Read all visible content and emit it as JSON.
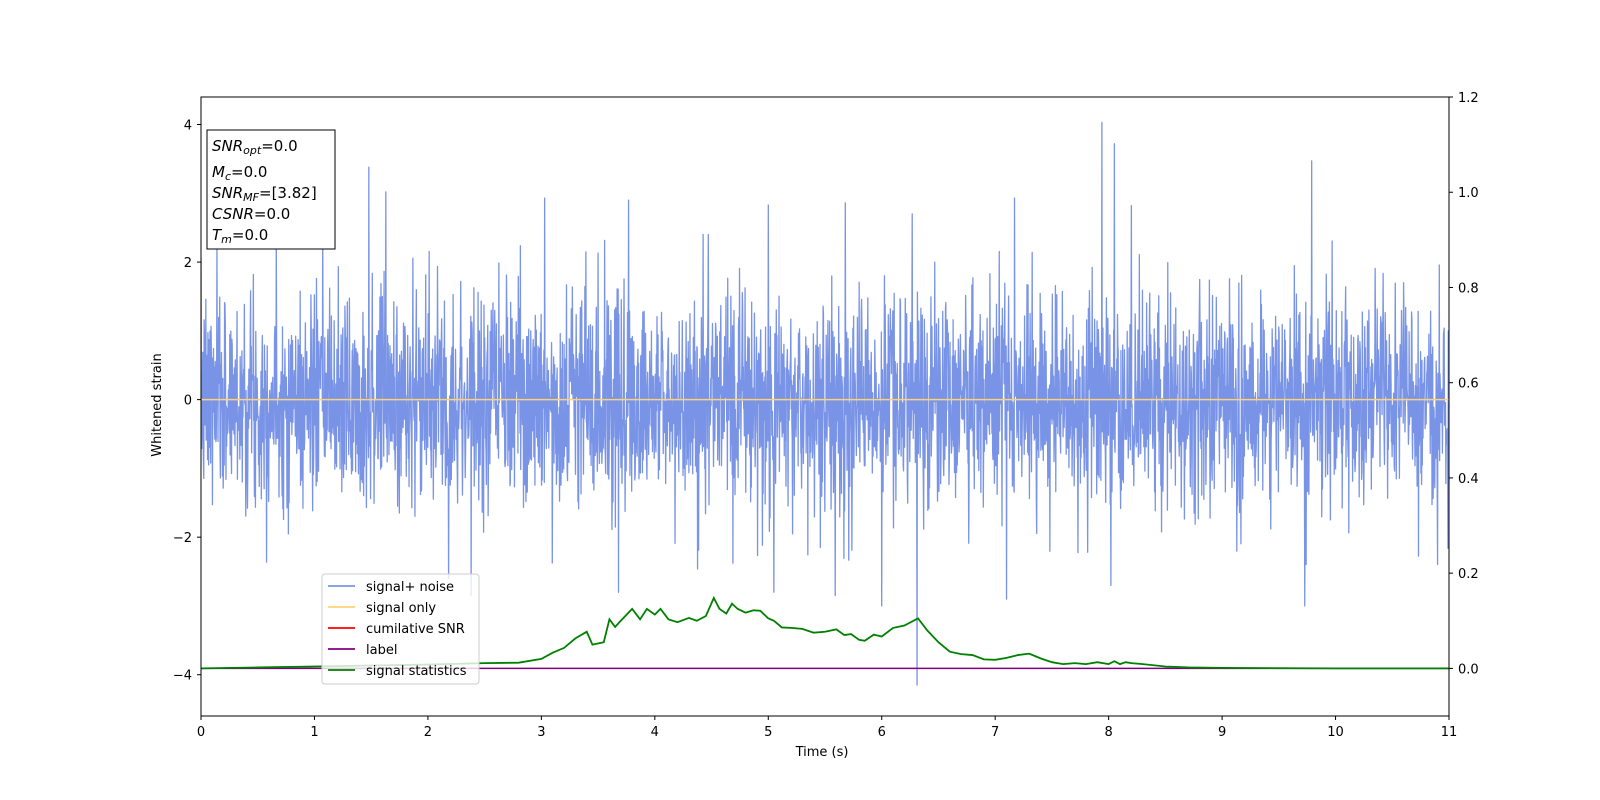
{
  "chart_data": {
    "type": "line",
    "xlabel": "Time (s)",
    "ylabel": "Whitened strain",
    "xlim": [
      0,
      11
    ],
    "ylim": [
      -4.6,
      4.4
    ],
    "y2lim": [
      -0.1,
      1.2
    ],
    "xticks": [
      "0",
      "1",
      "2",
      "3",
      "4",
      "5",
      "6",
      "7",
      "8",
      "9",
      "10",
      "11"
    ],
    "yticks": [
      "−4",
      "−2",
      "0",
      "2",
      "4"
    ],
    "y2ticks": [
      "0.0",
      "0.2",
      "0.4",
      "0.6",
      "0.8",
      "1.0",
      "1.2"
    ],
    "grid": false,
    "legend_position": "lower-left",
    "legend": [
      {
        "name": "signal+ noise",
        "color": "#7994e6"
      },
      {
        "name": "signal only",
        "color": "#ffd27a"
      },
      {
        "name": "cumilative SNR",
        "color": "#ff0000"
      },
      {
        "name": "label",
        "color": "#800080"
      },
      {
        "name": "signal statistics",
        "color": "#008000"
      }
    ],
    "annotation": {
      "lines": [
        {
          "sym": "SNR",
          "sub": "opt",
          "value": "=0.0"
        },
        {
          "sym": "M",
          "sub": "c",
          "value": "=0.0"
        },
        {
          "sym": "SNR",
          "sub": "MF",
          "value": "=[3.82]"
        },
        {
          "sym": "CSNR",
          "sub": "",
          "value": "=0.0"
        },
        {
          "sym": "T",
          "sub": "m",
          "value": "=0.0"
        }
      ]
    },
    "series": [
      {
        "name": "signal+ noise",
        "axis": "left",
        "color": "#7994e6",
        "noise": {
          "sigma": 0.75,
          "clip": [
            -2.6,
            2.4
          ],
          "seed": 7
        },
        "spikes": [
          [
            1.48,
            3.38
          ],
          [
            1.63,
            3.02
          ],
          [
            2.38,
            2.85
          ],
          [
            2.38,
            -2.85
          ],
          [
            3.03,
            2.93
          ],
          [
            3.77,
            2.9
          ],
          [
            5.0,
            2.83
          ],
          [
            5.68,
            2.86
          ],
          [
            6.31,
            -4.15
          ],
          [
            6.27,
            2.7
          ],
          [
            7.17,
            2.93
          ],
          [
            7.94,
            4.03
          ],
          [
            8.05,
            3.72
          ],
          [
            8.2,
            2.82
          ],
          [
            9.79,
            3.47
          ],
          [
            9.73,
            -3.0
          ],
          [
            5.05,
            -2.8
          ],
          [
            6.0,
            -3.0
          ],
          [
            7.1,
            -2.9
          ],
          [
            8.02,
            -2.7
          ],
          [
            3.68,
            -2.8
          ],
          [
            5.59,
            -2.85
          ]
        ]
      },
      {
        "name": "signal only",
        "axis": "left",
        "color": "#ffd27a",
        "x": [
          0,
          11
        ],
        "y": [
          0,
          0
        ]
      },
      {
        "name": "label",
        "axis": "right",
        "color": "#800080",
        "x": [
          0,
          11
        ],
        "y": [
          0,
          0
        ]
      },
      {
        "name": "signal statistics",
        "axis": "right",
        "color": "#008000",
        "x": [
          0,
          0.5,
          1.0,
          1.5,
          2.0,
          2.5,
          2.8,
          3.0,
          3.1,
          3.2,
          3.3,
          3.4,
          3.45,
          3.55,
          3.6,
          3.65,
          3.7,
          3.8,
          3.87,
          3.93,
          4.0,
          4.05,
          4.12,
          4.2,
          4.3,
          4.37,
          4.45,
          4.52,
          4.57,
          4.63,
          4.68,
          4.73,
          4.8,
          4.87,
          4.93,
          5.0,
          5.05,
          5.12,
          5.2,
          5.3,
          5.4,
          5.5,
          5.6,
          5.67,
          5.73,
          5.8,
          5.85,
          5.93,
          6.0,
          6.1,
          6.2,
          6.32,
          6.4,
          6.5,
          6.6,
          6.7,
          6.8,
          6.9,
          7.0,
          7.1,
          7.2,
          7.3,
          7.4,
          7.5,
          7.6,
          7.7,
          7.8,
          7.9,
          8.0,
          8.05,
          8.1,
          8.15,
          8.2,
          8.3,
          8.5,
          8.7,
          9.0,
          10.0,
          11.0
        ],
        "y": [
          0.0,
          0.002,
          0.004,
          0.006,
          0.008,
          0.011,
          0.012,
          0.02,
          0.033,
          0.043,
          0.063,
          0.077,
          0.05,
          0.055,
          0.103,
          0.087,
          0.1,
          0.125,
          0.103,
          0.125,
          0.113,
          0.125,
          0.103,
          0.097,
          0.106,
          0.1,
          0.11,
          0.148,
          0.125,
          0.115,
          0.136,
          0.125,
          0.117,
          0.122,
          0.121,
          0.105,
          0.1,
          0.086,
          0.085,
          0.083,
          0.075,
          0.077,
          0.082,
          0.07,
          0.072,
          0.06,
          0.058,
          0.071,
          0.067,
          0.085,
          0.09,
          0.105,
          0.08,
          0.055,
          0.035,
          0.03,
          0.028,
          0.019,
          0.018,
          0.022,
          0.028,
          0.031,
          0.021,
          0.013,
          0.009,
          0.011,
          0.009,
          0.013,
          0.009,
          0.015,
          0.009,
          0.013,
          0.011,
          0.009,
          0.004,
          0.002,
          0.001,
          0.0,
          0.0
        ]
      }
    ]
  }
}
